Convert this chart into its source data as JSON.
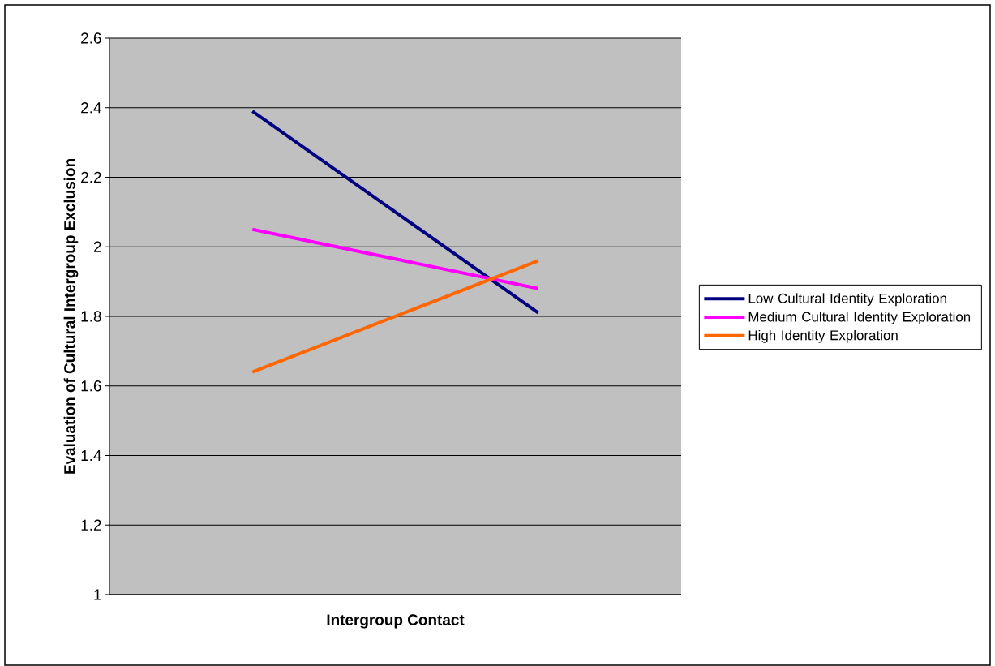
{
  "chart_data": {
    "type": "line",
    "xlabel": "Intergroup Contact",
    "ylabel": "Evaluation of Cultural Intergroup Exclusion",
    "categories": [
      null,
      null
    ],
    "series": [
      {
        "name": "Low Cultural Identity Exploration",
        "color": "#000080",
        "values": [
          2.39,
          1.81
        ]
      },
      {
        "name": "Medium Cultural Identity Exploration",
        "color": "#ff00ff",
        "values": [
          2.05,
          1.88
        ]
      },
      {
        "name": "High Identity Exploration",
        "color": "#ff6600",
        "values": [
          1.64,
          1.96
        ]
      }
    ],
    "ylim": [
      1,
      2.6
    ],
    "yticks": [
      1,
      1.2,
      1.4,
      1.6,
      1.8,
      2,
      2.2,
      2.4,
      2.6
    ],
    "grid": "y",
    "legend": "right",
    "marker": "none",
    "line_style": "solid"
  }
}
